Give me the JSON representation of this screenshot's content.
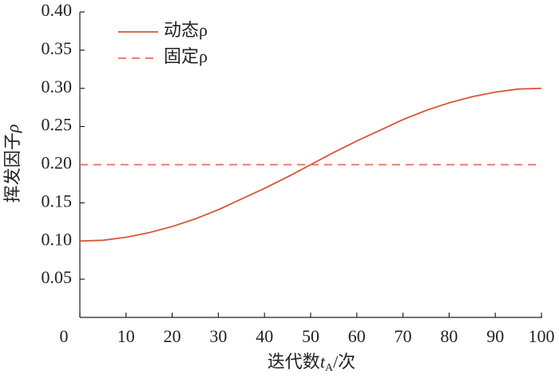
{
  "chart_data": {
    "type": "line",
    "xlabel": [
      "迭代数",
      "t",
      "A",
      "/次"
    ],
    "ylabel": [
      "挥发因子",
      "ρ"
    ],
    "xlim": [
      0,
      100
    ],
    "xticks": [
      0,
      10,
      20,
      30,
      40,
      50,
      60,
      70,
      80,
      90,
      100
    ],
    "ylim": [
      0,
      0.4
    ],
    "yticks": [
      0.05,
      {
        "value": 0.1,
        "label": "0.10"
      },
      0.15,
      {
        "value": 0.2,
        "label": "0.20"
      },
      0.25,
      {
        "value": 0.3,
        "label": "0.30"
      },
      0.35,
      {
        "value": 0.4,
        "label": "0.40"
      }
    ],
    "legend": "top-left",
    "series": [
      {
        "name": "动态ρ",
        "color": "#d9553a",
        "style": "solid",
        "x": [
          0,
          5,
          10,
          15,
          20,
          25,
          30,
          35,
          40,
          45,
          50,
          55,
          60,
          65,
          70,
          75,
          80,
          85,
          90,
          95,
          100
        ],
        "values": [
          0.1,
          0.101,
          0.105,
          0.111,
          0.119,
          0.129,
          0.141,
          0.155,
          0.169,
          0.184,
          0.2,
          0.216,
          0.231,
          0.245,
          0.259,
          0.271,
          0.281,
          0.289,
          0.295,
          0.299,
          0.3
        ]
      },
      {
        "name": "固定ρ",
        "color": "#e0705a",
        "style": "dashed",
        "x": [
          0,
          100
        ],
        "values": [
          0.2,
          0.2
        ]
      }
    ]
  }
}
